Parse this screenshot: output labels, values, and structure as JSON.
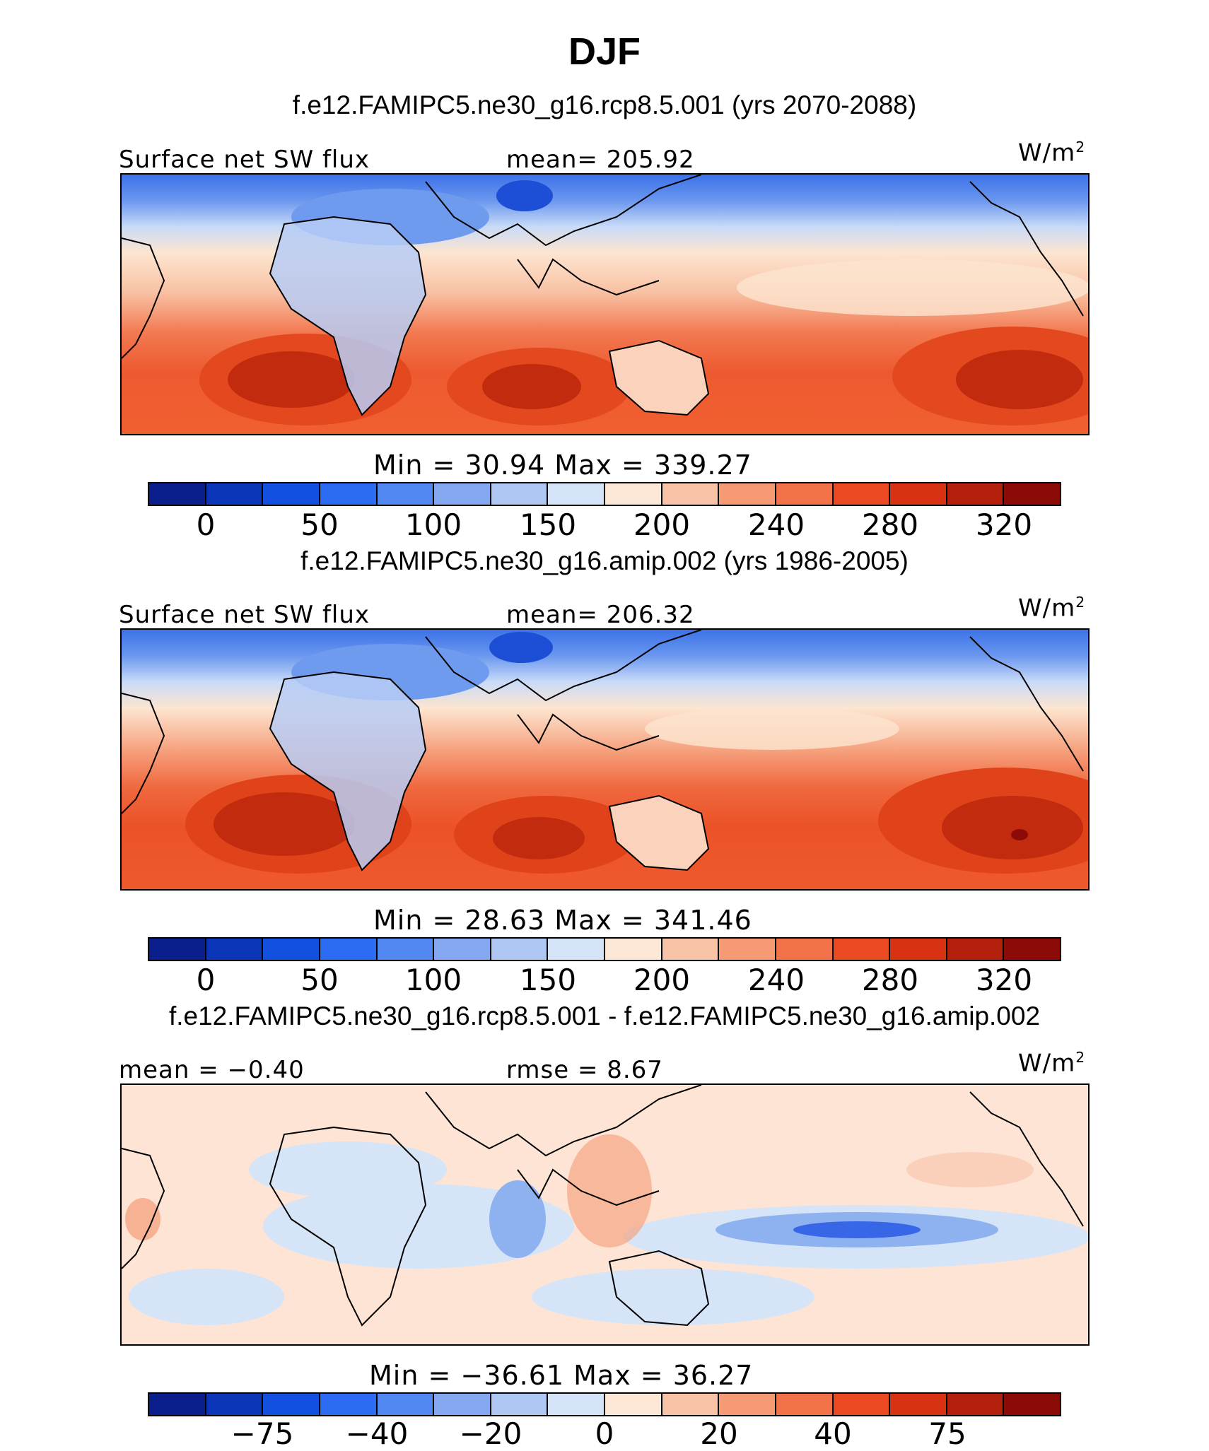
{
  "title": "DJF",
  "panels": [
    {
      "subtitle": "f.e12.FAMIPC5.ne30_g16.rcp8.5.001 (yrs 2070-2088)",
      "left_label": "Surface net SW flux",
      "center_label": "mean=  205.92",
      "units": "W/m",
      "units_sup": "2",
      "minmax": "Min  =   30.94  Max  =  339.27",
      "ticks": [
        "0",
        "50",
        "100",
        "150",
        "200",
        "240",
        "280",
        "320"
      ]
    },
    {
      "subtitle": "f.e12.FAMIPC5.ne30_g16.amip.002 (yrs 1986-2005)",
      "left_label": "Surface net SW flux",
      "center_label": "mean=  206.32",
      "units": "W/m",
      "units_sup": "2",
      "minmax": "Min  =   28.63  Max  =  341.46",
      "ticks": [
        "0",
        "50",
        "100",
        "150",
        "200",
        "240",
        "280",
        "320"
      ]
    },
    {
      "subtitle": "f.e12.FAMIPC5.ne30_g16.rcp8.5.001 - f.e12.FAMIPC5.ne30_g16.amip.002",
      "left_label": "mean  =   −0.40",
      "center_label": "rmse  =    8.67",
      "units": "W/m",
      "units_sup": "2",
      "minmax": "Min  =  −36.61  Max  =   36.27",
      "ticks": [
        "−75",
        "−40",
        "−20",
        "0",
        "20",
        "40",
        "75"
      ]
    }
  ],
  "colorbar_colors": [
    "#0a1f8c",
    "#0c36b8",
    "#1350e0",
    "#2b6cf3",
    "#5288f2",
    "#84a8f0",
    "#afc7f3",
    "#d4e3f8",
    "#fde7d6",
    "#f8c3a7",
    "#f69a74",
    "#f27249",
    "#ec4a23",
    "#d83212",
    "#b3200b",
    "#8b0c06"
  ],
  "map_legend": {
    "field_colors": {
      "polar_blue": "#3c72e8",
      "light_blue": "#c9dbf7",
      "cream": "#fde5d0",
      "salmon": "#f6a582",
      "orange_red": "#ee5a30",
      "deep_red": "#c22b0d"
    },
    "diff_colors": {
      "near_zero_blue": "#d6e4f8",
      "near_zero_red": "#fde4d5",
      "neg": "#8eb2f0",
      "neg_strong": "#3767e6",
      "pos": "#f5a582"
    }
  }
}
